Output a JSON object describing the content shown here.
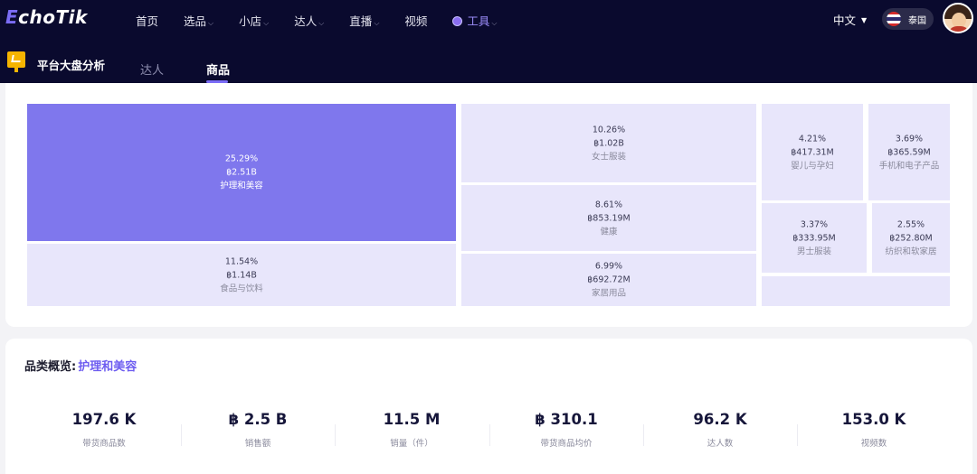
{
  "header": {
    "logo": {
      "first_letter": "E",
      "rest": "choTik"
    },
    "nav": [
      {
        "label": "首页",
        "has_dropdown": false
      },
      {
        "label": "选品",
        "has_dropdown": true
      },
      {
        "label": "小店",
        "has_dropdown": true
      },
      {
        "label": "达人",
        "has_dropdown": true
      },
      {
        "label": "直播",
        "has_dropdown": true
      },
      {
        "label": "视频",
        "has_dropdown": false
      },
      {
        "label": "工具",
        "has_dropdown": true,
        "icon": "globe-icon"
      }
    ],
    "language": "中文",
    "country": "泰国",
    "colors": {
      "background": "#0a0a2e",
      "accent": "#7b6cf6"
    }
  },
  "subheader": {
    "title": "平台大盘分析",
    "tabs": [
      {
        "label": "达人",
        "active": false
      },
      {
        "label": "商品",
        "active": true
      }
    ]
  },
  "treemap": {
    "tiles": [
      {
        "percent": "25.29%",
        "amount": "฿2.51B",
        "name": "护理和美容",
        "highlighted": true
      },
      {
        "percent": "11.54%",
        "amount": "฿1.14B",
        "name": "食品与饮料"
      },
      {
        "percent": "10.26%",
        "amount": "฿1.02B",
        "name": "女士服装"
      },
      {
        "percent": "8.61%",
        "amount": "฿853.19M",
        "name": "健康"
      },
      {
        "percent": "6.99%",
        "amount": "฿692.72M",
        "name": "家居用品"
      },
      {
        "percent": "4.21%",
        "amount": "฿417.31M",
        "name": "婴儿与孕妇"
      },
      {
        "percent": "3.69%",
        "amount": "฿365.59M",
        "name": "手机和电子产品"
      },
      {
        "percent": "3.37%",
        "amount": "฿333.95M",
        "name": "男士服装"
      },
      {
        "percent": "2.55%",
        "amount": "฿252.80M",
        "name": "纺织和软家居"
      },
      {
        "percent": "",
        "amount": "",
        "name": ""
      }
    ],
    "colors": {
      "highlight": "#7f77ed",
      "tile": "#e8e6fb"
    }
  },
  "overview": {
    "label": "品类概览:",
    "category": "护理和美容",
    "stats": [
      {
        "value": "197.6 K",
        "label": "带货商品数"
      },
      {
        "value": "฿ 2.5 B",
        "label": "销售额"
      },
      {
        "value": "11.5 M",
        "label": "销量（件）"
      },
      {
        "value": "฿ 310.1",
        "label": "带货商品均价"
      },
      {
        "value": "96.2 K",
        "label": "达人数"
      },
      {
        "value": "153.0 K",
        "label": "视频数"
      }
    ]
  }
}
